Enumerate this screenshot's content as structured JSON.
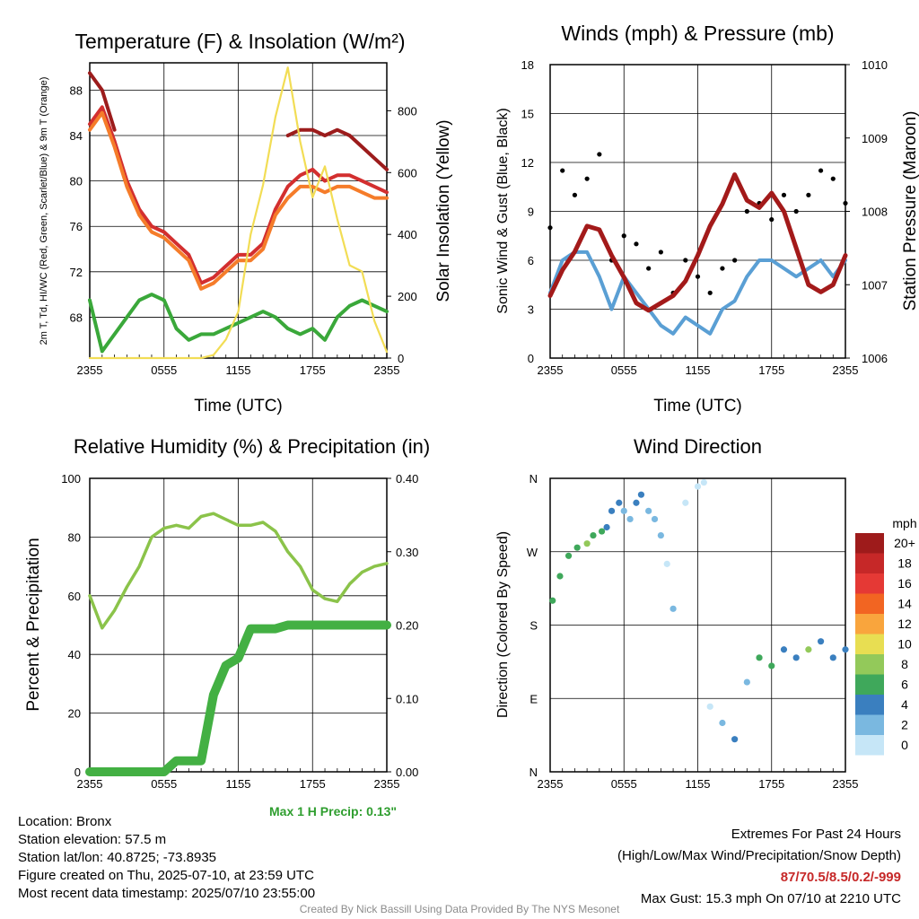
{
  "panels": {
    "temp": {
      "title": "Temperature (F) & Insolation (W/m²)",
      "ylabel_left": "2m T, Td, HI/WC (Red, Green, Scarlet/Blue) & 9m T (Orange)",
      "ylabel_right": "Solar Insolation (Yellow)",
      "xlabel": "Time (UTC)"
    },
    "wind": {
      "title": "Winds (mph) & Pressure (mb)",
      "ylabel_left": "Sonic Wind & Gust (Blue, Black)",
      "ylabel_right": "Station Pressure (Maroon)",
      "xlabel": "Time (UTC)"
    },
    "rh": {
      "title": "Relative Humidity (%) & Precipitation (in)",
      "ylabel_left": "Percent & Precipitation",
      "max_precip": "Max 1 H Precip: 0.13\""
    },
    "dir": {
      "title": "Wind Direction",
      "ylabel_left": "Direction (Colored By Speed)",
      "colorbar_title": "mph",
      "colorbar_labels": [
        "20+",
        "18",
        "16",
        "14",
        "12",
        "10",
        "8",
        "6",
        "4",
        "2",
        "0"
      ],
      "colorbar_colors": [
        "#9e1b1b",
        "#c62828",
        "#e53935",
        "#f26522",
        "#f9a53d",
        "#e8de52",
        "#93c95a",
        "#3fa85b",
        "#3a7fbf",
        "#7ab8e0",
        "#c6e6f7"
      ]
    }
  },
  "info": {
    "location": "Location: Bronx",
    "elevation": "Station elevation: 57.5 m",
    "latlon": "Station lat/lon: 40.8725; -73.8935",
    "created": "Figure created on Thu, 2025-07-10, at 23:59 UTC",
    "recent": "Most recent data timestamp: 2025/07/10 23:55:00",
    "extremes_title": "Extremes For Past 24 Hours",
    "extremes_sub": "(High/Low/Max Wind/Precipitation/Snow Depth)",
    "extremes_values": "87/70.5/8.5/0.2/-999",
    "max_gust": "Max Gust: 15.3 mph On 07/10 at 2210 UTC",
    "credit": "Created By Nick Bassill Using Data Provided By The NYS Mesonet"
  },
  "chart_data": [
    {
      "type": "line",
      "title": "Temperature (F) & Insolation (W/m²)",
      "xlabel": "Time (UTC)",
      "ylabel": "2m T, Td, HI/WC (Red, Green, Scarlet/Blue) & 9m T (Orange)",
      "ylabel_right": "Solar Insolation (Yellow)",
      "x_ticks": [
        "2355",
        "0555",
        "1155",
        "1755",
        "2355"
      ],
      "y_ticks": [
        68,
        72,
        76,
        80,
        84,
        88
      ],
      "y_right_ticks": [
        0,
        200,
        400,
        600,
        800
      ],
      "ylim": [
        64.4,
        90.4
      ],
      "ylim_right": [
        0,
        955
      ],
      "x": [
        0,
        1,
        2,
        3,
        4,
        5,
        6,
        7,
        8,
        9,
        10,
        11,
        12,
        13,
        14,
        15,
        16,
        17,
        18,
        19,
        20,
        21,
        22,
        23,
        24
      ],
      "series": [
        {
          "name": "2m T",
          "color": "#d32f2f",
          "values": [
            85.0,
            86.5,
            83.5,
            80.0,
            77.5,
            76.0,
            75.5,
            74.5,
            73.5,
            71.0,
            71.5,
            72.5,
            73.5,
            73.5,
            74.5,
            77.5,
            79.5,
            80.5,
            81.0,
            80.0,
            80.5,
            80.5,
            80.0,
            79.5,
            79.0
          ]
        },
        {
          "name": "9m T",
          "color": "#f57c2a",
          "values": [
            84.5,
            86.0,
            83.0,
            79.5,
            77.0,
            75.5,
            75.0,
            74.0,
            73.0,
            70.5,
            71.0,
            72.0,
            73.0,
            73.0,
            74.0,
            77.0,
            78.5,
            79.5,
            79.5,
            79.0,
            79.5,
            79.5,
            79.0,
            78.5,
            78.5
          ]
        },
        {
          "name": "HI",
          "color": "#9c1c1c",
          "values": [
            89.5,
            88.0,
            84.5,
            null,
            null,
            null,
            null,
            null,
            null,
            null,
            null,
            null,
            null,
            null,
            null,
            null,
            84.0,
            84.5,
            84.5,
            84.0,
            84.5,
            84.0,
            83.0,
            82.0,
            81.0
          ]
        },
        {
          "name": "Td",
          "color": "#3aa83a",
          "values": [
            69.5,
            65.0,
            66.5,
            68.0,
            69.5,
            70.0,
            69.5,
            67.0,
            66.0,
            66.5,
            66.5,
            67.0,
            67.5,
            68.0,
            68.5,
            68.0,
            67.0,
            66.5,
            67.0,
            66.0,
            68.0,
            69.0,
            69.5,
            69.0,
            68.5
          ]
        },
        {
          "name": "Solar",
          "axis": "right",
          "color": "#f2dd55",
          "values": [
            0,
            0,
            0,
            0,
            0,
            0,
            0,
            0,
            0,
            0,
            10,
            60,
            150,
            400,
            560,
            780,
            940,
            700,
            520,
            620,
            450,
            300,
            280,
            120,
            20
          ]
        }
      ]
    },
    {
      "type": "scatter",
      "title": "Winds (mph) & Pressure (mb)",
      "xlabel": "Time (UTC)",
      "ylabel": "Sonic Wind & Gust (Blue, Black)",
      "ylabel_right": "Station Pressure (Maroon)",
      "x_ticks": [
        "2355",
        "0555",
        "1155",
        "1755",
        "2355"
      ],
      "y_ticks": [
        0,
        3,
        6,
        9,
        12,
        15,
        18
      ],
      "y_right_ticks": [
        1006,
        1007,
        1008,
        1009,
        1010
      ],
      "ylim": [
        0,
        18
      ],
      "ylim_right": [
        1006,
        1010
      ],
      "x": [
        0,
        1,
        2,
        3,
        4,
        5,
        6,
        7,
        8,
        9,
        10,
        11,
        12,
        13,
        14,
        15,
        16,
        17,
        18,
        19,
        20,
        21,
        22,
        23,
        24
      ],
      "series": [
        {
          "name": "Sonic Wind",
          "color": "#5a9fd4",
          "values": [
            4.0,
            6.0,
            6.5,
            6.5,
            5.0,
            3.0,
            5.0,
            4.0,
            3.0,
            2.0,
            1.5,
            2.5,
            2.0,
            1.5,
            3.0,
            3.5,
            5.0,
            6.0,
            6.0,
            5.5,
            5.0,
            5.5,
            6.0,
            5.0,
            6.0
          ]
        },
        {
          "name": "Gust",
          "color": "#000000",
          "values": [
            8.0,
            11.5,
            10.0,
            11.0,
            12.5,
            6.0,
            7.5,
            7.0,
            5.5,
            6.5,
            4.0,
            6.0,
            5.0,
            4.0,
            5.5,
            6.0,
            9.0,
            9.5,
            8.5,
            10.0,
            9.0,
            10.0,
            11.5,
            11.0,
            9.5
          ]
        },
        {
          "name": "Pressure",
          "axis": "right",
          "color": "#a31a1a",
          "values": [
            1006.85,
            1007.2,
            1007.45,
            1007.8,
            1007.75,
            1007.4,
            1007.1,
            1006.75,
            1006.65,
            1006.75,
            1006.85,
            1007.05,
            1007.4,
            1007.8,
            1008.1,
            1008.5,
            1008.15,
            1008.05,
            1008.25,
            1008.0,
            1007.5,
            1007.0,
            1006.9,
            1007.0,
            1007.4
          ]
        }
      ]
    },
    {
      "type": "line",
      "title": "Relative Humidity (%) & Precipitation (in)",
      "xlabel": "",
      "ylabel": "Percent & Precipitation",
      "x_ticks": [
        "2355",
        "0555",
        "1155",
        "1755",
        "2355"
      ],
      "y_ticks": [
        0,
        20,
        40,
        60,
        80,
        100
      ],
      "y_right_ticks": [
        0.0,
        0.1,
        0.2,
        0.3,
        0.4
      ],
      "ylim": [
        0,
        100
      ],
      "ylim_right": [
        0,
        0.4
      ],
      "x": [
        0,
        1,
        2,
        3,
        4,
        5,
        6,
        7,
        8,
        9,
        10,
        11,
        12,
        13,
        14,
        15,
        16,
        17,
        18,
        19,
        20,
        21,
        22,
        23,
        24
      ],
      "series": [
        {
          "name": "RH",
          "color": "#8bc34a",
          "values": [
            60,
            49,
            55,
            63,
            70,
            80,
            83,
            84,
            83,
            87,
            88,
            86,
            84,
            84,
            85,
            82,
            75,
            70,
            62,
            59,
            58,
            64,
            68,
            70,
            71
          ]
        },
        {
          "name": "Precip",
          "axis": "right",
          "color": "#43b043",
          "values": [
            0.0,
            0.0,
            0.0,
            0.0,
            0.0,
            0.0,
            0.0,
            0.015,
            0.015,
            0.015,
            0.105,
            0.145,
            0.155,
            0.195,
            0.195,
            0.195,
            0.2,
            0.2,
            0.2,
            0.2,
            0.2,
            0.2,
            0.2,
            0.2,
            0.2
          ]
        }
      ]
    },
    {
      "type": "scatter",
      "title": "Wind Direction",
      "ylabel": "Direction (Colored By Speed)",
      "x_ticks": [
        "2355",
        "0555",
        "1155",
        "1755",
        "2355"
      ],
      "y_ticks": [
        "N",
        "E",
        "S",
        "W",
        "N"
      ],
      "ylim": [
        0,
        360
      ],
      "colorbar": {
        "title": "mph",
        "labels": [
          "0",
          "2",
          "4",
          "6",
          "8",
          "10",
          "12",
          "14",
          "16",
          "18",
          "20+"
        ]
      },
      "x": [
        0.2,
        0.8,
        1.5,
        2.2,
        3.0,
        3.5,
        4.2,
        4.6,
        5.0,
        5.6,
        6.0,
        6.5,
        7.0,
        7.4,
        8.0,
        8.5,
        9.0,
        9.5,
        10.0,
        11.0,
        12.0,
        12.5,
        13.0,
        14.0,
        15.0,
        16.0,
        17.0,
        18.0,
        19.0,
        20.0,
        21.0,
        22.0,
        23.0,
        24.0
      ],
      "series": [
        {
          "name": "Direction",
          "values": [
            210,
            240,
            265,
            275,
            280,
            290,
            295,
            300,
            320,
            330,
            320,
            310,
            330,
            340,
            320,
            310,
            290,
            255,
            200,
            330,
            350,
            355,
            80,
            60,
            40,
            110,
            140,
            130,
            150,
            140,
            150,
            160,
            140,
            150
          ]
        },
        {
          "name": "Speed",
          "values": [
            7,
            7,
            6,
            7,
            8,
            6,
            6,
            5,
            5,
            4,
            2,
            3,
            5,
            4,
            3,
            2,
            2,
            1,
            2,
            1,
            1,
            0,
            1,
            2,
            4,
            3,
            6,
            7,
            4,
            5,
            8,
            5,
            4,
            5
          ]
        }
      ]
    }
  ]
}
